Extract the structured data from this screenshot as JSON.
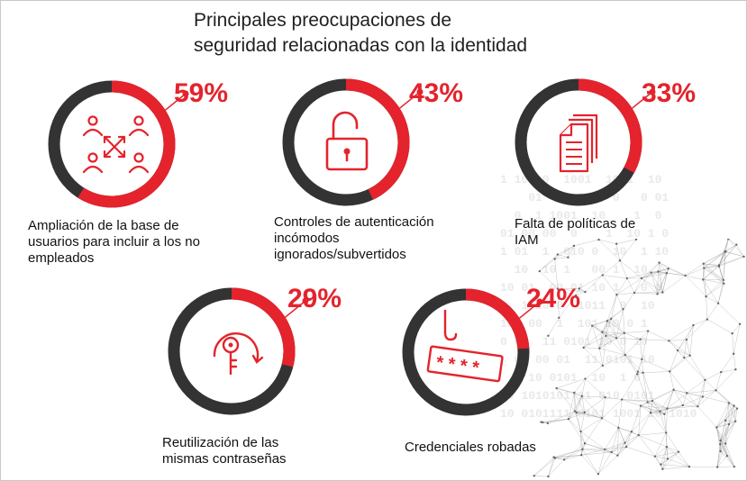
{
  "title_line1": "Principales preocupaciones de",
  "title_line2": "seguridad relacionadas con la identidad",
  "colors": {
    "accent": "#e4232c",
    "ring": "#333333"
  },
  "background_binary": [
    "1 10  0  1001  10 1  10",
    "    01  1  010  0   0 01",
    "  0  1 1001  10    1  0",
    "01 00 00  0    1  10 1 0",
    "1 01  1  010 0  10  1 10",
    "  10  10 1   00 1  10",
    "10 01  00 01 10 1   0 0",
    "   1 10 0  1011  0  10",
    "101 00  1  101 10 0 1",
    "0 01  11 0101 10 0 10",
    "  01 00 01  11 0101 10",
    "  1 10 0101  10  1 0",
    " 0 1010101 11 010 0101",
    "10 0101111 0101 1001 10 1010"
  ],
  "chart_data": {
    "type": "pie",
    "title": "Principales preocupaciones de seguridad relacionadas con la identidad",
    "unit": "%",
    "items": [
      {
        "label": "Ampliación de la base de usuarios para incluir a los no empleados",
        "caption_lines": [
          "Ampliación de la base de",
          "usuarios para incluir a los no",
          "empleados"
        ],
        "value": 59,
        "value_label": "59%",
        "icon": "users-network-icon"
      },
      {
        "label": "Controles de autenticación incómodos ignorados/subvertidos",
        "caption_lines": [
          "Controles de autenticación",
          "incómodos",
          "ignorados/subvertidos"
        ],
        "value": 43,
        "value_label": "43%",
        "icon": "unlocked-padlock-icon"
      },
      {
        "label": "Falta de políticas de IAM",
        "caption_lines": [
          "Falta de políticas de",
          "IAM"
        ],
        "value": 33,
        "value_label": "33%",
        "icon": "documents-icon"
      },
      {
        "label": "Reutilización de las mismas contraseñas",
        "caption_lines": [
          "Reutilización de las",
          "mismas contraseñas"
        ],
        "value": 29,
        "value_label": "29%",
        "icon": "key-refresh-icon"
      },
      {
        "label": "Credenciales robadas",
        "caption_lines": [
          "Credenciales robadas"
        ],
        "value": 24,
        "value_label": "24%",
        "icon": "password-hook-icon"
      }
    ]
  }
}
